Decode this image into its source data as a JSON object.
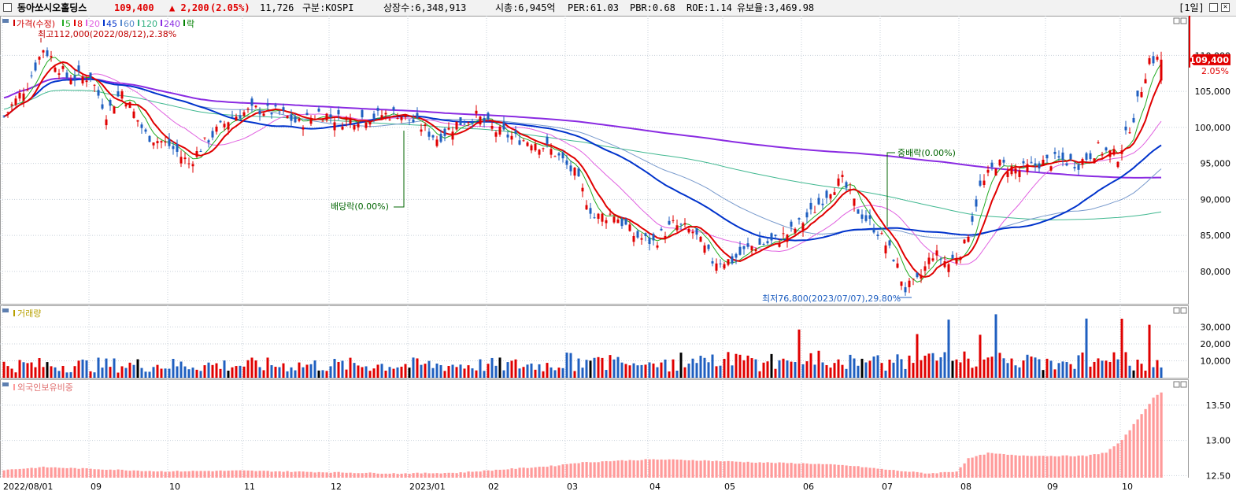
{
  "header": {
    "stock_name": "동아쏘시오홀딩스",
    "price": "109,400",
    "change": "▲ 2,200",
    "change_pct": "(2.05%)",
    "volume": "11,726",
    "market": "구분:KOSPI",
    "shares": "상장수:6,348,913",
    "market_cap": "시총:6,945억",
    "per": "PER:61.03",
    "pbr": "PBR:0.68",
    "roe": "ROE:1.14",
    "retention": "유보율:3,469.98",
    "period": "[1일]",
    "colors": {
      "name": "#000000",
      "up": "#e00000"
    }
  },
  "chart_data": [
    {
      "type": "candlestick",
      "panel": "price",
      "legend": [
        {
          "label": "가격(수정)",
          "color": "#d00000"
        },
        {
          "label": "5",
          "color": "#22aa22"
        },
        {
          "label": "8",
          "color": "#e00000"
        },
        {
          "label": "20",
          "color": "#e060e0"
        },
        {
          "label": "45",
          "color": "#0033cc"
        },
        {
          "label": "60",
          "color": "#5588cc"
        },
        {
          "label": "120",
          "color": "#30b080"
        },
        {
          "label": "240",
          "color": "#8a2be2"
        },
        {
          "label": "락",
          "color": "#008000"
        }
      ],
      "yticks": [
        "80,000",
        "85,000",
        "90,000",
        "95,000",
        "100,000",
        "105,000",
        "110,000"
      ],
      "ylim": [
        75500,
        115500
      ],
      "x_months": [
        {
          "label": "2022/08/01",
          "idx": 0
        },
        {
          "label": "09",
          "idx": 22
        },
        {
          "label": "10",
          "idx": 42
        },
        {
          "label": "11",
          "idx": 61
        },
        {
          "label": "12",
          "idx": 83
        },
        {
          "label": "2023/01",
          "idx": 103
        },
        {
          "label": "02",
          "idx": 123
        },
        {
          "label": "03",
          "idx": 143
        },
        {
          "label": "04",
          "idx": 164
        },
        {
          "label": "05",
          "idx": 183
        },
        {
          "label": "06",
          "idx": 203
        },
        {
          "label": "07",
          "idx": 223
        },
        {
          "label": "08",
          "idx": 243
        },
        {
          "label": "09",
          "idx": 265
        },
        {
          "label": "10",
          "idx": 284
        }
      ],
      "anchors": [
        [
          0,
          101500
        ],
        [
          6,
          106000
        ],
        [
          10,
          111000
        ],
        [
          16,
          107000
        ],
        [
          22,
          107000
        ],
        [
          26,
          102000
        ],
        [
          30,
          105000
        ],
        [
          36,
          99000
        ],
        [
          42,
          97500
        ],
        [
          47,
          95000
        ],
        [
          52,
          98500
        ],
        [
          58,
          101500
        ],
        [
          64,
          102500
        ],
        [
          70,
          102000
        ],
        [
          75,
          100500
        ],
        [
          80,
          102000
        ],
        [
          86,
          101000
        ],
        [
          93,
          101500
        ],
        [
          100,
          102000
        ],
        [
          105,
          100500
        ],
        [
          110,
          98500
        ],
        [
          115,
          100500
        ],
        [
          120,
          101500
        ],
        [
          125,
          99500
        ],
        [
          130,
          98500
        ],
        [
          135,
          98000
        ],
        [
          140,
          96500
        ],
        [
          145,
          93500
        ],
        [
          150,
          87500
        ],
        [
          155,
          88000
        ],
        [
          160,
          85000
        ],
        [
          165,
          84000
        ],
        [
          170,
          86500
        ],
        [
          175,
          85500
        ],
        [
          180,
          81500
        ],
        [
          185,
          81500
        ],
        [
          190,
          83500
        ],
        [
          195,
          84000
        ],
        [
          200,
          85500
        ],
        [
          205,
          88000
        ],
        [
          210,
          91500
        ],
        [
          213,
          92500
        ],
        [
          217,
          88500
        ],
        [
          222,
          85500
        ],
        [
          226,
          82000
        ],
        [
          229,
          77500
        ],
        [
          232,
          78500
        ],
        [
          236,
          82500
        ],
        [
          240,
          81000
        ],
        [
          244,
          83500
        ],
        [
          248,
          91500
        ],
        [
          252,
          95000
        ],
        [
          258,
          94000
        ],
        [
          263,
          95000
        ],
        [
          268,
          95500
        ],
        [
          273,
          95000
        ],
        [
          278,
          97000
        ],
        [
          283,
          96000
        ],
        [
          287,
          101500
        ],
        [
          291,
          109500
        ],
        [
          293,
          109400
        ]
      ],
      "current": {
        "price": "109,400",
        "pct": "2.05%"
      },
      "annotations": {
        "high": "최고112,000(2022/08/12),2.38%",
        "low": "최저76,800(2023/07/07),29.80%",
        "dividend": "배당락(0.00%)",
        "stock_dividend": "중배락(0.00%)"
      }
    },
    {
      "type": "bar",
      "panel": "volume",
      "title": "거래량",
      "yticks": [
        "10,000",
        "20,000",
        "30,000"
      ],
      "ylim": [
        0,
        40000
      ],
      "colors": {
        "up": "#e00000",
        "down": "#1f5fc0",
        "flat": "#000000"
      }
    },
    {
      "type": "bar",
      "panel": "foreign_ownership",
      "title": "외국인보유비중",
      "yticks": [
        "12.50",
        "13.00",
        "13.50"
      ],
      "ylim": [
        12.47,
        13.8
      ],
      "color": "#ff9a9a",
      "anchors": [
        [
          0,
          12.58
        ],
        [
          10,
          12.62
        ],
        [
          20,
          12.6
        ],
        [
          40,
          12.56
        ],
        [
          60,
          12.57
        ],
        [
          80,
          12.55
        ],
        [
          100,
          12.53
        ],
        [
          115,
          12.54
        ],
        [
          125,
          12.58
        ],
        [
          140,
          12.64
        ],
        [
          145,
          12.68
        ],
        [
          155,
          12.71
        ],
        [
          165,
          12.73
        ],
        [
          175,
          12.72
        ],
        [
          190,
          12.69
        ],
        [
          205,
          12.67
        ],
        [
          215,
          12.64
        ],
        [
          225,
          12.58
        ],
        [
          235,
          12.53
        ],
        [
          242,
          12.56
        ],
        [
          245,
          12.74
        ],
        [
          250,
          12.82
        ],
        [
          256,
          12.79
        ],
        [
          265,
          12.78
        ],
        [
          275,
          12.78
        ],
        [
          280,
          12.83
        ],
        [
          284,
          13.0
        ],
        [
          288,
          13.3
        ],
        [
          292,
          13.6
        ],
        [
          294,
          13.68
        ]
      ]
    }
  ]
}
